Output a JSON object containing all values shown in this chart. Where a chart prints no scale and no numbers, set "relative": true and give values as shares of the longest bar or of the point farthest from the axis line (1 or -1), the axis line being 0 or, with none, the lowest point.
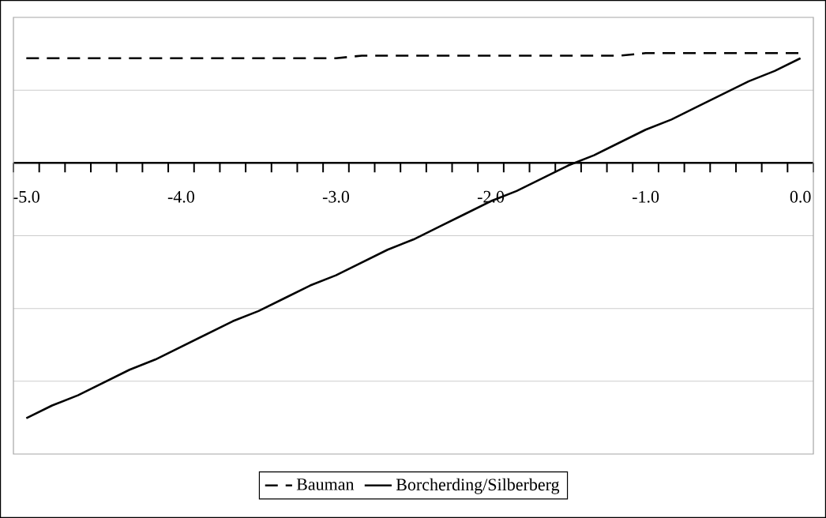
{
  "chart_data": {
    "type": "line",
    "relative": true,
    "categories": [
      "-5.0",
      null,
      null,
      null,
      null,
      null,
      "-4.0",
      null,
      null,
      null,
      null,
      null,
      "-3.0",
      null,
      null,
      null,
      null,
      null,
      "-2.0",
      null,
      null,
      null,
      null,
      null,
      "-1.0",
      null,
      null,
      null,
      null,
      null,
      "0.0"
    ],
    "series": [
      {
        "name": "Bauman",
        "color": "#000000",
        "line_style": "dashed",
        "values": [
          0.41,
          0.41,
          0.41,
          0.41,
          0.41,
          0.41,
          0.41,
          0.41,
          0.41,
          0.41,
          0.41,
          0.41,
          0.41,
          0.42,
          0.42,
          0.42,
          0.42,
          0.42,
          0.42,
          0.42,
          0.42,
          0.42,
          0.42,
          0.42,
          0.43,
          0.43,
          0.43,
          0.43,
          0.43,
          0.43,
          0.43
        ]
      },
      {
        "name": "Borcherding/Silberberg",
        "color": "#000000",
        "line_style": "solid",
        "values": [
          -1.0,
          -0.95,
          -0.91,
          -0.86,
          -0.81,
          -0.77,
          -0.72,
          -0.67,
          -0.62,
          -0.58,
          -0.53,
          -0.48,
          -0.44,
          -0.39,
          -0.34,
          -0.3,
          -0.25,
          -0.2,
          -0.15,
          -0.11,
          -0.06,
          -0.01,
          0.03,
          0.08,
          0.13,
          0.17,
          0.22,
          0.27,
          0.32,
          0.36,
          0.41
        ]
      }
    ],
    "grid": "y",
    "legend": "bottom",
    "marker": "none"
  }
}
